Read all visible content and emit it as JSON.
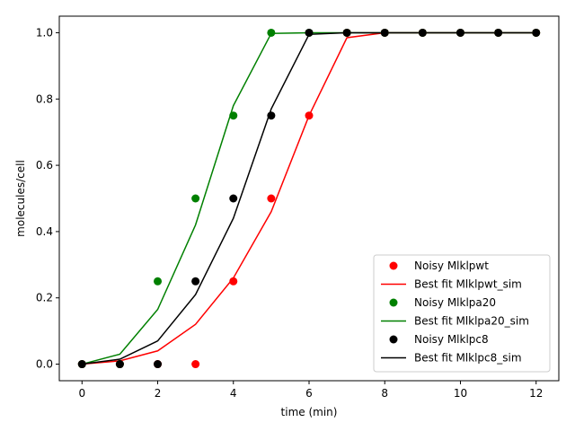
{
  "chart_data": {
    "type": "line",
    "xlabel": "time (min)",
    "ylabel": "molecules/cell",
    "xlim": [
      -0.6,
      12.6
    ],
    "ylim": [
      -0.05,
      1.05
    ],
    "xticks": [
      0,
      2,
      4,
      6,
      8,
      10,
      12
    ],
    "xtick_labels": [
      "0",
      "2",
      "4",
      "6",
      "8",
      "10",
      "12"
    ],
    "yticks": [
      0.0,
      0.2,
      0.4,
      0.6,
      0.8,
      1.0
    ],
    "ytick_labels": [
      "0.0",
      "0.2",
      "0.4",
      "0.6",
      "0.8",
      "1.0"
    ],
    "grid": false,
    "legend_position": "bottom-right",
    "series": [
      {
        "name": "Noisy Mlklpwt",
        "kind": "scatter",
        "color": "#ff0000",
        "x": [
          0,
          1,
          2,
          3,
          4,
          5,
          6,
          7,
          8,
          9,
          10,
          11,
          12
        ],
        "y": [
          0,
          0,
          0,
          0,
          0.25,
          0.5,
          0.75,
          1.0,
          1.0,
          1.0,
          1.0,
          1.0,
          1.0
        ]
      },
      {
        "name": "Best fit Mlklpwt_sim",
        "kind": "line",
        "color": "#ff0000",
        "x": [
          0,
          1,
          2,
          3,
          4,
          5,
          6,
          7,
          8,
          9,
          10,
          11,
          12
        ],
        "y": [
          0,
          0.01,
          0.04,
          0.12,
          0.26,
          0.46,
          0.75,
          0.985,
          1.0,
          1.0,
          1.0,
          1.0,
          1.0
        ]
      },
      {
        "name": "Noisy Mlklpa20",
        "kind": "scatter",
        "color": "#008000",
        "x": [
          0,
          1,
          2,
          3,
          4,
          5,
          6,
          7,
          8,
          9,
          10,
          11,
          12
        ],
        "y": [
          0,
          0,
          0.25,
          0.5,
          0.75,
          1.0,
          1.0,
          1.0,
          1.0,
          1.0,
          1.0,
          1.0,
          1.0
        ]
      },
      {
        "name": "Best fit Mlklpa20_sim",
        "kind": "line",
        "color": "#008000",
        "x": [
          0,
          1,
          2,
          3,
          4,
          5,
          6,
          7,
          8,
          9,
          10,
          11,
          12
        ],
        "y": [
          0,
          0.03,
          0.165,
          0.42,
          0.78,
          0.998,
          1.0,
          1.0,
          1.0,
          1.0,
          1.0,
          1.0,
          1.0
        ]
      },
      {
        "name": "Noisy Mlklpc8",
        "kind": "scatter",
        "color": "#000000",
        "x": [
          0,
          1,
          2,
          3,
          4,
          5,
          6,
          7,
          8,
          9,
          10,
          11,
          12
        ],
        "y": [
          0,
          0,
          0,
          0.25,
          0.5,
          0.75,
          1.0,
          1.0,
          1.0,
          1.0,
          1.0,
          1.0,
          1.0
        ]
      },
      {
        "name": "Best fit Mlklpc8_sim",
        "kind": "line",
        "color": "#000000",
        "x": [
          0,
          1,
          2,
          3,
          4,
          5,
          6,
          7,
          8,
          9,
          10,
          11,
          12
        ],
        "y": [
          0,
          0.015,
          0.07,
          0.21,
          0.44,
          0.77,
          0.995,
          1.0,
          1.0,
          1.0,
          1.0,
          1.0,
          1.0
        ]
      }
    ]
  }
}
